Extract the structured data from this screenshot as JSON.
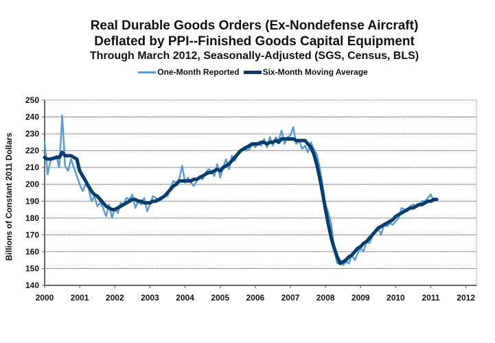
{
  "chart_data": {
    "type": "line",
    "title": "Real Durable Goods Orders (Ex-Nondefense Aircraft)",
    "subtitle": "Deflated by PPI--Finished Goods Capital Equipment",
    "subtitle2": "Through March 2012, Seasonally-Adjusted (SGS, Census, BLS)",
    "xlabel": "",
    "ylabel": "Billions of Constant 2011 Dollars",
    "ylim": [
      140,
      250
    ],
    "yticks": [
      140,
      150,
      160,
      170,
      180,
      190,
      200,
      210,
      220,
      230,
      240,
      250
    ],
    "xlim": [
      2000,
      2012.3
    ],
    "xticks": [
      "2000",
      "2001",
      "2002",
      "2003",
      "2004",
      "2005",
      "2006",
      "2007",
      "2008",
      "2009",
      "2010",
      "2011",
      "2012"
    ],
    "grid": true,
    "legend_position": "top-center",
    "x_start": "2000-01",
    "x_frequency": "monthly",
    "series": [
      {
        "name": "One-Month Reported",
        "color": "#5b9bd5",
        "values": [
          225,
          206,
          214,
          215,
          217,
          210,
          241,
          211,
          208,
          215,
          210,
          205,
          200,
          196,
          200,
          198,
          190,
          193,
          187,
          189,
          186,
          181,
          188,
          180,
          186,
          183,
          189,
          188,
          192,
          191,
          194,
          186,
          190,
          188,
          192,
          184,
          188,
          193,
          192,
          190,
          191,
          194,
          193,
          198,
          202,
          201,
          203,
          211,
          201,
          204,
          201,
          199,
          202,
          205,
          203,
          207,
          209,
          208,
          205,
          212,
          204,
          210,
          215,
          209,
          217,
          214,
          218,
          219,
          222,
          220,
          221,
          224,
          222,
          225,
          223,
          227,
          222,
          228,
          223,
          228,
          226,
          232,
          224,
          228,
          229,
          234,
          224,
          226,
          221,
          223,
          219,
          225,
          221,
          218,
          210,
          200,
          188,
          183,
          176,
          161,
          153,
          155,
          152,
          154,
          153,
          158,
          155,
          159,
          162,
          160,
          166,
          165,
          169,
          172,
          174,
          170,
          176,
          175,
          177,
          176,
          178,
          180,
          186,
          185,
          184,
          187,
          188,
          187,
          188,
          190,
          190,
          192,
          194,
          190,
          191
        ]
      },
      {
        "name": "Six-Month Moving Average",
        "color": "#0a3d6e",
        "values": [
          216,
          215,
          215,
          215.5,
          216,
          216,
          219,
          217,
          217,
          217,
          216,
          215,
          208,
          205,
          202,
          199,
          196,
          194,
          193,
          191,
          189,
          187,
          186,
          185,
          185,
          186,
          187,
          188,
          189,
          190,
          191,
          191,
          190,
          190,
          189,
          189,
          189,
          190,
          190,
          191,
          192,
          193,
          195,
          197,
          199,
          200,
          202,
          202,
          202,
          202,
          202,
          203,
          203,
          204,
          205,
          206,
          207,
          207,
          208,
          209,
          208,
          210,
          211,
          212,
          214,
          216,
          218,
          220,
          221,
          222,
          223,
          224,
          224,
          224,
          225,
          225,
          224,
          225,
          225,
          226,
          225,
          227,
          227,
          227,
          227,
          227,
          226,
          226,
          226,
          226,
          224,
          222,
          218,
          212,
          204,
          195,
          185,
          176,
          168,
          162,
          157,
          153,
          154,
          155,
          157,
          158,
          160,
          162,
          163,
          165,
          166,
          168,
          170,
          172,
          174,
          175,
          176,
          177,
          178,
          179,
          181,
          182,
          183,
          184,
          185,
          186,
          186,
          187,
          188,
          188,
          189,
          190,
          190,
          191,
          191
        ]
      }
    ]
  }
}
